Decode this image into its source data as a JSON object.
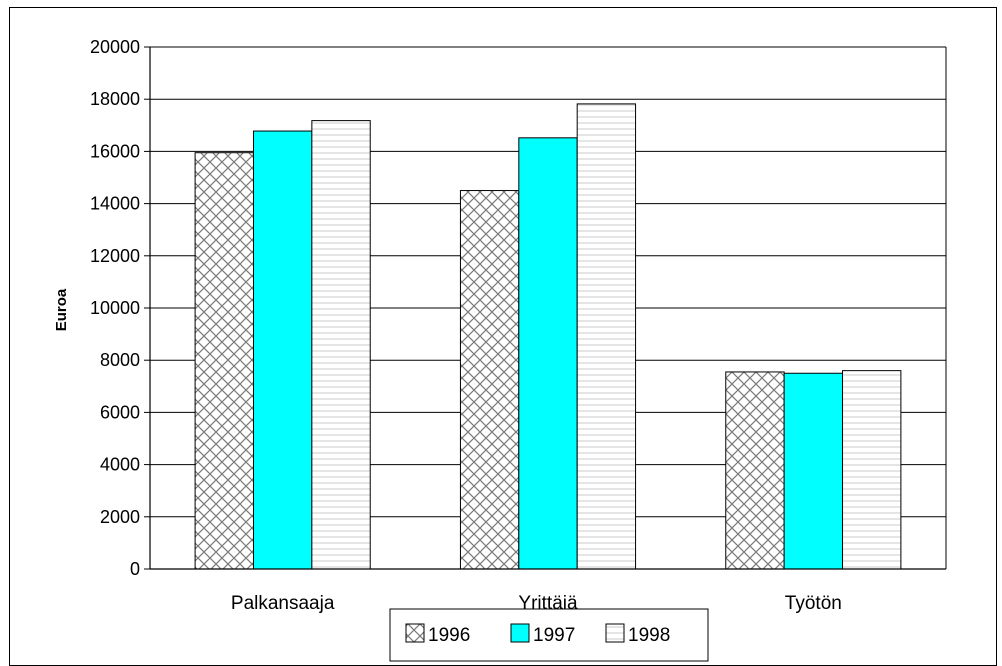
{
  "chart_data": {
    "type": "bar",
    "title": "",
    "xlabel": "",
    "ylabel": "Euroa",
    "categories": [
      "Palkansaaja",
      "Yrittäjä",
      "Työtön"
    ],
    "series": [
      {
        "name": "1996",
        "values": [
          15950,
          14500,
          7550
        ],
        "pattern": "crosshatch",
        "color": "#ffffff"
      },
      {
        "name": "1997",
        "values": [
          16780,
          16520,
          7500
        ],
        "pattern": "solid",
        "color": "#00ffff"
      },
      {
        "name": "1998",
        "values": [
          17180,
          17820,
          7600
        ],
        "pattern": "horizontal-lines",
        "color": "#ffffff"
      }
    ],
    "ylim": [
      0,
      20000
    ],
    "yticks": [
      0,
      2000,
      4000,
      6000,
      8000,
      10000,
      12000,
      14000,
      16000,
      18000,
      20000
    ],
    "grid": true,
    "legend_position": "bottom-center"
  }
}
